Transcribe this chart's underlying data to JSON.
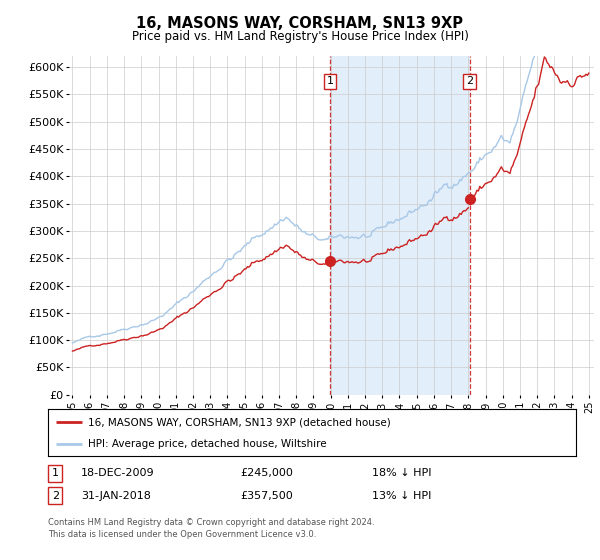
{
  "title": "16, MASONS WAY, CORSHAM, SN13 9XP",
  "subtitle": "Price paid vs. HM Land Registry's House Price Index (HPI)",
  "hpi_label": "HPI: Average price, detached house, Wiltshire",
  "property_label": "16, MASONS WAY, CORSHAM, SN13 9XP (detached house)",
  "hpi_color": "#a8c8e8",
  "property_color": "#cc2222",
  "vline_color": "#cc2222",
  "bg_span_color": "#ddeeff",
  "purchase1_year": 2009.96,
  "purchase1_price": 245000,
  "purchase2_year": 2018.08,
  "purchase2_price": 357500,
  "ylim_min": 0,
  "ylim_max": 620000,
  "ytick_step": 50000,
  "xlim_min": 1994.8,
  "xlim_max": 2025.3,
  "footer": "Contains HM Land Registry data © Crown copyright and database right 2024.\nThis data is licensed under the Open Government Licence v3.0."
}
